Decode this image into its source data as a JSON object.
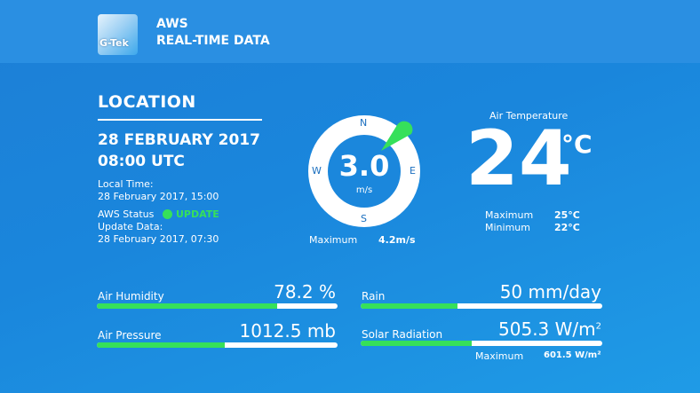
{
  "header": {
    "logo_text": "G-Tek",
    "line1": "AWS",
    "line2": "REAL-TIME DATA"
  },
  "location": {
    "title": "LOCATION",
    "date": "28 FEBRUARY 2017",
    "time": "08:00 UTC",
    "local_time_label": "Local Time:",
    "local_time_value": "28 February 2017, 15:00",
    "status_label": "AWS Status",
    "status_value": "UPDATE",
    "update_label": "Update Data:",
    "update_value": "28 February 2017, 07:30"
  },
  "wind": {
    "value": "3.0",
    "unit": "m/s",
    "north": "N",
    "south": "S",
    "east": "E",
    "west": "W",
    "max_label": "Maximum",
    "max_value": "4.2m/s"
  },
  "temperature": {
    "label": "Air Temperature",
    "value": "24",
    "unit": "°C",
    "max_label": "Maximum",
    "max_value": "25°C",
    "min_label": "Minimum",
    "min_value": "22°C"
  },
  "metrics": {
    "humidity": {
      "label": "Air Humidity",
      "value": "78.2 %",
      "level": 0.75
    },
    "pressure": {
      "label": "Air Pressure",
      "value": "1012.5 mb",
      "level": 0.53
    },
    "rain": {
      "label": "Rain",
      "value": "50 mm/day",
      "level": 0.4
    },
    "solar": {
      "label": "Solar Radiation",
      "value": "505.3 W/m",
      "value_sup": "2",
      "level": 0.46,
      "max_label": "Maximum",
      "max_value": "601.5 W/m²"
    }
  },
  "colors": {
    "accent_green": "#36e05a",
    "background_blue": "#1a86dc",
    "header_blue": "#2a8fe2"
  }
}
